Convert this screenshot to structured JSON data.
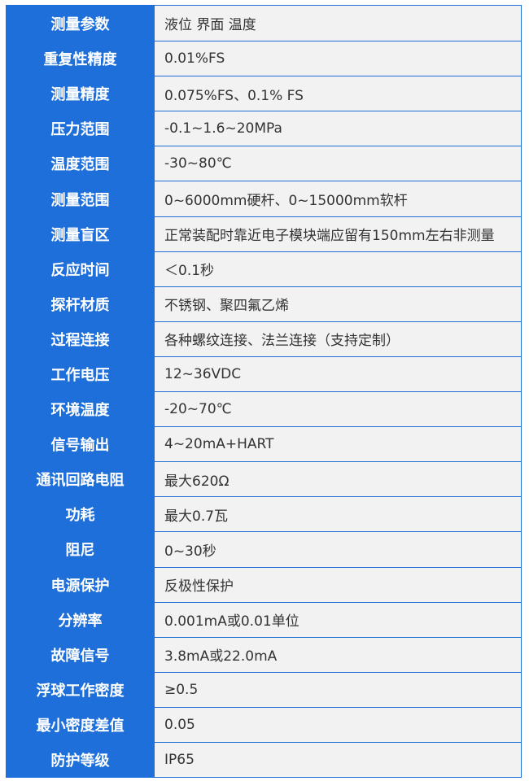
{
  "table": {
    "rows": [
      [
        "测量参数",
        "液位 界面 温度"
      ],
      [
        "重复性精度",
        "0.01%FS"
      ],
      [
        "测量精度",
        "0.075%FS、0.1% FS"
      ],
      [
        "压力范围",
        "-0.1~1.6~20MPa"
      ],
      [
        "温度范围",
        "-30~80℃"
      ],
      [
        "测量范围",
        "0~6000mm硬杆、0~15000mm软杆"
      ],
      [
        "测量盲区",
        "正常装配时靠近电子模块端应留有150mm左右非测量"
      ],
      [
        "反应时间",
        "＜0.1秒"
      ],
      [
        "探杆材质",
        "不锈钢、聚四氟乙烯"
      ],
      [
        "过程连接",
        "各种螺纹连接、法兰连接（支持定制）"
      ],
      [
        "工作电压",
        "12~36VDC"
      ],
      [
        "环境温度",
        "-20~70℃"
      ],
      [
        "信号输出",
        "4~20mA+HART"
      ],
      [
        "通讯回路电阻",
        "最大620Ω"
      ],
      [
        "功耗",
        "最大0.7瓦"
      ],
      [
        "阻尼",
        "0~30秒"
      ],
      [
        "电源保护",
        "反极性保护"
      ],
      [
        "分辨率",
        "0.001mA或0.01单位"
      ],
      [
        "故障信号",
        "3.8mA或22.0mA"
      ],
      [
        "浮球工作密度",
        "≥0.5"
      ],
      [
        "最小密度差值",
        "0.05"
      ],
      [
        "防护等级",
        "IP65"
      ]
    ]
  }
}
